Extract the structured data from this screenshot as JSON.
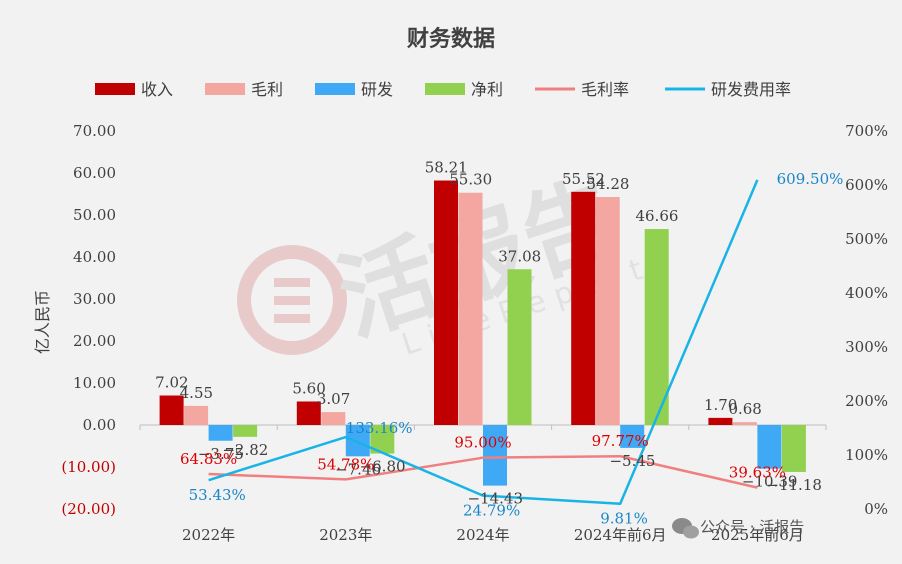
{
  "chart_data": {
    "type": "bar",
    "title": "财务数据",
    "ylabel": "亿人民币",
    "categories": [
      "2022年",
      "2023年",
      "2024年",
      "2024年前6月",
      "2025年前6月"
    ],
    "ylim": [
      -20,
      70
    ],
    "y2lim": [
      0,
      700
    ],
    "y_ticks": [
      "70.00",
      "60.00",
      "50.00",
      "40.00",
      "30.00",
      "20.00",
      "10.00",
      "0.00",
      "(10.00)",
      "(20.00)"
    ],
    "y2_ticks": [
      "700%",
      "600%",
      "500%",
      "400%",
      "300%",
      "200%",
      "100%",
      "0%"
    ],
    "legend_position": "top",
    "bar_series": [
      {
        "name": "收入",
        "color": "#c00000",
        "values": [
          7.02,
          5.6,
          58.21,
          55.52,
          1.7
        ],
        "labels": [
          "7.02",
          "5.60",
          "58.21",
          "55.52",
          "1.70"
        ]
      },
      {
        "name": "毛利",
        "color": "#f4a6a0",
        "values": [
          4.55,
          3.07,
          55.3,
          54.28,
          0.68
        ],
        "labels": [
          "4.55",
          "3.07",
          "55.30",
          "54.28",
          "0.68"
        ]
      },
      {
        "name": "研发",
        "color": "#3fa9f5",
        "values": [
          -3.75,
          -7.46,
          -14.43,
          -5.45,
          -10.39
        ],
        "labels": [
          "−3.75",
          "−7.46",
          "−14.43",
          "−5.45",
          "−10.39"
        ]
      },
      {
        "name": "净利",
        "color": "#92d050",
        "values": [
          -2.82,
          -6.8,
          37.08,
          46.66,
          -11.18
        ],
        "labels": [
          "−2.82",
          "−6.80",
          "37.08",
          "46.66",
          "−11.18"
        ]
      }
    ],
    "line_series": [
      {
        "name": "毛利率",
        "color": "#f08080",
        "label_color": "#e00000",
        "values": [
          64.83,
          54.78,
          95.0,
          97.77,
          39.63
        ],
        "labels": [
          "64.83%",
          "54.78%",
          "95.00%",
          "97.77%",
          "39.63%"
        ]
      },
      {
        "name": "研发费用率",
        "color": "#18b4e6",
        "label_color": "#1a86c8",
        "values": [
          53.43,
          133.16,
          24.79,
          9.81,
          609.5
        ],
        "labels": [
          "53.43%",
          "133.16%",
          "24.79%",
          "9.81%",
          "609.50%"
        ]
      }
    ]
  },
  "watermark": {
    "brand": "活报告",
    "sub": "LiveReport",
    "footer": "公众号 · 活报告"
  }
}
